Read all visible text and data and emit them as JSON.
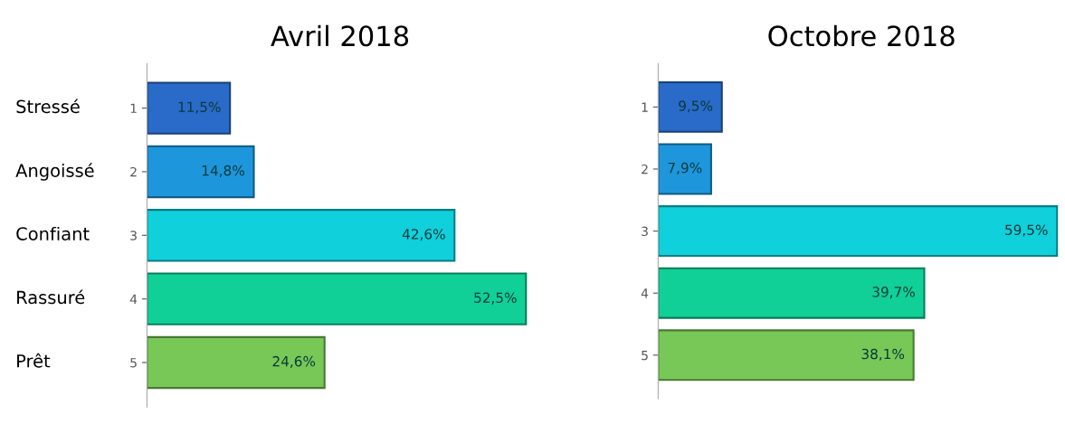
{
  "chart_data": [
    {
      "type": "bar",
      "orientation": "horizontal",
      "title": "Avril 2018",
      "categories": [
        "1",
        "2",
        "3",
        "4",
        "5"
      ],
      "values": [
        11.5,
        14.8,
        42.6,
        52.5,
        24.6
      ],
      "value_labels": [
        "11,5%",
        "14,8%",
        "42,6%",
        "52,5%",
        "24,6%"
      ],
      "colors": [
        "#2a6ac8",
        "#1e96dc",
        "#10d0dc",
        "#10d098",
        "#78c858"
      ],
      "tick_labels": "y",
      "grid": false,
      "legend": false,
      "annotations": [
        "Stressé",
        "Angoissé",
        "Confiant",
        "Rassuré",
        "Prêt"
      ]
    },
    {
      "type": "bar",
      "orientation": "horizontal",
      "title": "Octobre 2018",
      "categories": [
        "1",
        "2",
        "3",
        "4",
        "5"
      ],
      "values": [
        9.5,
        7.9,
        59.5,
        39.7,
        38.1
      ],
      "value_labels": [
        "9,5%",
        "7,9%",
        "59,5%",
        "39,7%",
        "38,1%"
      ],
      "colors": [
        "#2a6ac8",
        "#1e96dc",
        "#10d0dc",
        "#10d098",
        "#78c858"
      ],
      "tick_labels": "y",
      "grid": false,
      "legend": false
    }
  ]
}
